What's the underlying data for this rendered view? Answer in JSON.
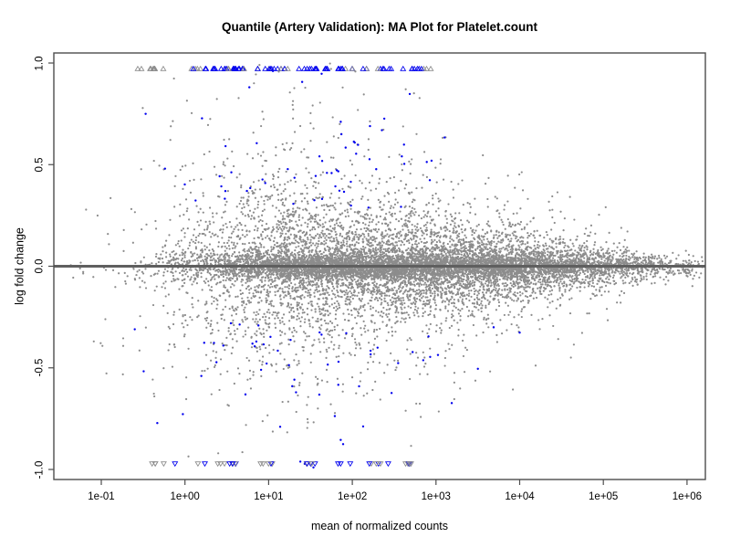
{
  "chart_data": {
    "type": "scatter",
    "title": "Quantile (Artery Validation): MA Plot for Platelet.count",
    "xlabel": "mean of normalized counts",
    "ylabel": "log fold change",
    "x_scale": "log10",
    "xlim": [
      0.03,
      1700000
    ],
    "ylim": [
      -1,
      1
    ],
    "x_tick_labels": [
      "1e-01",
      "1e+00",
      "1e+01",
      "1e+02",
      "1e+03",
      "1e+04",
      "1e+05",
      "1e+06"
    ],
    "x_tick_values_log10": [
      -1,
      0,
      1,
      2,
      3,
      4,
      5,
      6
    ],
    "y_tick_labels": [
      "-1.0",
      "-0.5",
      "0.0",
      "0.5",
      "1.0"
    ],
    "y_tick_values": [
      -1,
      -0.5,
      0,
      0.5,
      1
    ],
    "grid": false,
    "legend": null,
    "zero_line": {
      "y": 0,
      "color": "#5f5f5f",
      "width": 3
    },
    "box_color": "#4d4d4d",
    "colors": {
      "nonsignificant": "#8c8c8c",
      "significant": "#0000ee"
    },
    "seed": 1234,
    "series": [
      {
        "name": "genes-nonsignificant",
        "marker": "circle",
        "color": "#8c8c8c",
        "radius": 1.1,
        "n": 11000,
        "x_log10_mixture": [
          {
            "w": 0.33,
            "mean": 1.3,
            "sd": 0.8
          },
          {
            "w": 0.45,
            "mean": 2.8,
            "sd": 0.95
          },
          {
            "w": 0.22,
            "mean": 4.3,
            "sd": 0.95
          }
        ],
        "x_log10_clamp": [
          -1.52,
          6.2
        ],
        "y_model": {
          "core_frac": 0.45,
          "core_sd": 0.035,
          "mid_frac": 0.43,
          "mid_scale": 0.55,
          "tail_scale": 1.25,
          "spread_base": 0.42,
          "spread_slope": -0.065,
          "spread_min": 0.05
        }
      },
      {
        "name": "genes-significant",
        "marker": "circle",
        "color": "#0000ee",
        "radius": 1.2,
        "n": 115,
        "x_log10_mean": 1.6,
        "x_log10_sd": 1.0,
        "x_log10_clamp": [
          -0.6,
          4.0
        ],
        "y_min": 0.15,
        "y_bias": 0.28,
        "y_sd": 0.3,
        "y_max": 0.99,
        "pos_frac": 0.55
      },
      {
        "name": "clipped-above-ylim",
        "marker": "triangle-up",
        "y": 0.973,
        "n": 95,
        "x_log10_range": [
          -0.72,
          2.95
        ],
        "split_l": 0.2,
        "blue_prob_left": 0.15,
        "blue_prob_right": 0.78,
        "clump_prob": 0.45,
        "clump_jitter": 0.05
      },
      {
        "name": "clipped-below-ylim",
        "marker": "triangle-down",
        "y": -0.973,
        "n": 40,
        "x_log10_range": [
          -0.4,
          3.0
        ],
        "split_l": 0.5,
        "blue_prob_left": 0.3,
        "blue_prob_right": 0.5,
        "clump_prob": 0.4,
        "clump_jitter": 0.05
      }
    ]
  }
}
